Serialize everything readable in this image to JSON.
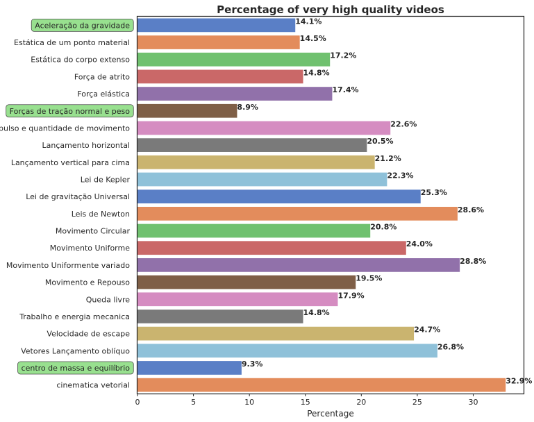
{
  "chart_data": {
    "type": "bar",
    "orientation": "horizontal",
    "title": "Percentage of very high quality videos",
    "xlabel": "Percentage",
    "ylabel": "",
    "xlim": [
      0,
      34.5
    ],
    "xticks": [
      0,
      5,
      10,
      15,
      20,
      25,
      30
    ],
    "grid": false,
    "categories": [
      "Aceleração da gravidade",
      "Estática de um ponto material",
      "Estática do corpo extenso",
      "Força de atrito",
      "Força elástica",
      "Forças de tração normal e peso",
      "Impulso e quantidade de movimento",
      "Lançamento horizontal",
      "Lançamento vertical para cima",
      "Lei de Kepler",
      "Lei de gravitação Universal",
      "Leis de Newton",
      "Movimento Circular",
      "Movimento Uniforme",
      "Movimento Uniformente variado",
      "Movimento e Repouso",
      "Queda livre",
      "Trabalho e energia mecanica",
      "Velocidade de escape",
      "Vetores Lançamento oblíquo",
      "centro de massa e equilíbrio",
      "cinematica vetorial"
    ],
    "values": [
      14.1,
      14.5,
      17.2,
      14.8,
      17.4,
      8.9,
      22.6,
      20.5,
      21.2,
      22.3,
      25.3,
      28.6,
      20.8,
      24.0,
      28.8,
      19.5,
      17.9,
      14.8,
      24.7,
      26.8,
      9.3,
      32.9
    ],
    "value_labels": [
      "14.1%",
      "14.5%",
      "17.2%",
      "14.8%",
      "17.4%",
      "8.9%",
      "22.6%",
      "20.5%",
      "21.2%",
      "22.3%",
      "25.3%",
      "28.6%",
      "20.8%",
      "24.0%",
      "28.8%",
      "19.5%",
      "17.9%",
      "14.8%",
      "24.7%",
      "26.8%",
      "9.3%",
      "32.9%"
    ],
    "highlighted_categories": [
      "Aceleração da gravidade",
      "Forças de tração normal e peso",
      "centro de massa e equilíbrio"
    ],
    "palette": [
      "#5a7fc6",
      "#e38c5c",
      "#70c16f",
      "#ca6868",
      "#9171aa",
      "#7f5f47",
      "#d58cc1",
      "#7a7a7a",
      "#cab46f",
      "#8fc1d9"
    ],
    "highlight_color": "#98e08f"
  }
}
